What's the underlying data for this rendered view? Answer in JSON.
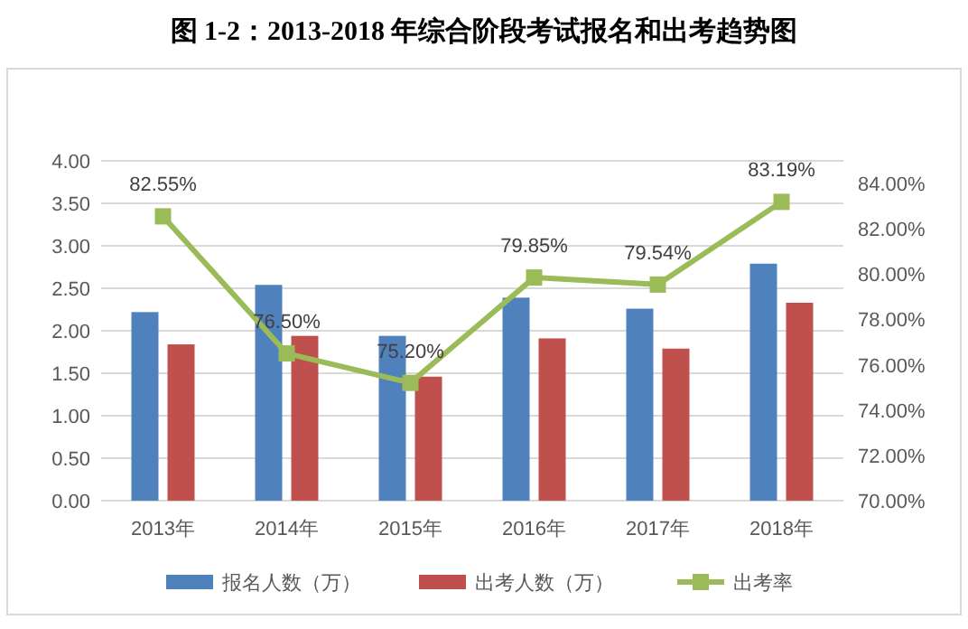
{
  "chart_data": {
    "type": "bar",
    "title": "图 1-2：2013-2018 年综合阶段考试报名和出考趋势图",
    "categories": [
      "2013年",
      "2014年",
      "2015年",
      "2016年",
      "2017年",
      "2018年"
    ],
    "series": [
      {
        "name": "报名人数（万）",
        "color": "#4f81bd",
        "values": [
          2.22,
          2.54,
          1.94,
          2.39,
          2.26,
          2.79
        ]
      },
      {
        "name": "出考人数（万）",
        "color": "#c0504d",
        "values": [
          1.84,
          1.94,
          1.46,
          1.91,
          1.79,
          2.33
        ]
      },
      {
        "name": "出考率",
        "type": "line",
        "axis": "y2",
        "color": "#9bbb59",
        "values": [
          82.55,
          76.5,
          75.2,
          79.85,
          79.54,
          83.19
        ],
        "value_labels": [
          "82.55%",
          "76.50%",
          "75.20%",
          "79.85%",
          "79.54%",
          "83.19%"
        ]
      }
    ],
    "ylim": [
      0,
      4
    ],
    "yticks": [
      {
        "value": 0,
        "label": "0.00"
      },
      {
        "value": 0.5,
        "label": "0.50"
      },
      {
        "value": 1,
        "label": "1.00"
      },
      {
        "value": 1.5,
        "label": "1.50"
      },
      {
        "value": 2,
        "label": "2.00"
      },
      {
        "value": 2.5,
        "label": "2.50"
      },
      {
        "value": 3,
        "label": "3.00"
      },
      {
        "value": 3.5,
        "label": "3.50"
      },
      {
        "value": 4,
        "label": "4.00"
      }
    ],
    "y2lim": [
      70,
      85
    ],
    "y2ticks": [
      {
        "value": 70,
        "label": "70.00%"
      },
      {
        "value": 72,
        "label": "72.00%"
      },
      {
        "value": 74,
        "label": "74.00%"
      },
      {
        "value": 76,
        "label": "76.00%"
      },
      {
        "value": 78,
        "label": "78.00%"
      },
      {
        "value": 80,
        "label": "80.00%"
      },
      {
        "value": 82,
        "label": "82.00%"
      },
      {
        "value": 84,
        "label": "84.00%"
      }
    ],
    "grid": "y",
    "legend": "bottom",
    "marker": "square"
  }
}
